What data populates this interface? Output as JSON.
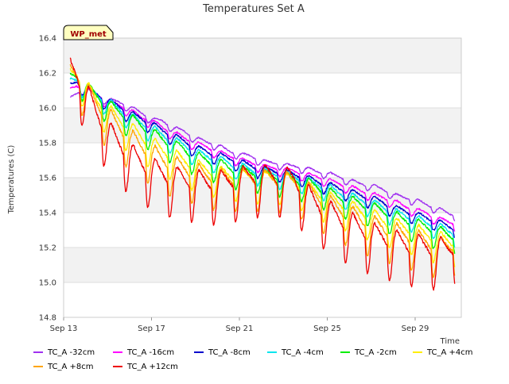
{
  "chart_data": {
    "type": "line",
    "title": "Temperatures Set A",
    "xlabel": "Time",
    "ylabel": "Temperatures (C)",
    "site_label": "WP_met",
    "x_ticks": [
      "Sep 13",
      "Sep 17",
      "Sep 21",
      "Sep 25",
      "Sep 29"
    ],
    "x_tick_days": [
      13,
      17,
      21,
      25,
      29
    ],
    "xlim_days": [
      13,
      31.1
    ],
    "ylim": [
      14.8,
      16.4
    ],
    "y_ticks": [
      14.8,
      15.0,
      15.2,
      15.4,
      15.6,
      15.8,
      16.0,
      16.2,
      16.4
    ],
    "grid": true,
    "legend_position": "bottom",
    "x": [
      13.3,
      13.6,
      14.0,
      14.5,
      15.0,
      15.5,
      16.0,
      16.5,
      17.0,
      17.5,
      18.0,
      18.5,
      19.0,
      19.5,
      20.0,
      20.5,
      21.0,
      21.5,
      22.0,
      22.5,
      23.0,
      23.5,
      24.0,
      24.5,
      25.0,
      25.5,
      26.0,
      26.5,
      27.0,
      27.5,
      28.0,
      28.5,
      29.0,
      29.5,
      30.0,
      30.5,
      30.8
    ],
    "series": [
      {
        "name": "TC_A -32cm",
        "color": "#a030f0",
        "values": [
          16.05,
          16.08,
          16.1,
          16.07,
          16.04,
          16.03,
          16.0,
          15.97,
          15.93,
          15.92,
          15.88,
          15.86,
          15.82,
          15.8,
          15.78,
          15.75,
          15.73,
          15.72,
          15.69,
          15.68,
          15.67,
          15.66,
          15.65,
          15.63,
          15.62,
          15.6,
          15.58,
          15.56,
          15.55,
          15.53,
          15.5,
          15.48,
          15.47,
          15.44,
          15.42,
          15.39,
          15.38
        ]
      },
      {
        "name": "TC_A -16cm",
        "color": "#ff00ff",
        "values": [
          16.1,
          16.12,
          16.1,
          16.07,
          16.03,
          16.01,
          15.98,
          15.94,
          15.92,
          15.88,
          15.85,
          15.82,
          15.79,
          15.77,
          15.74,
          15.72,
          15.7,
          15.68,
          15.66,
          15.65,
          15.64,
          15.63,
          15.61,
          15.6,
          15.58,
          15.56,
          15.54,
          15.52,
          15.5,
          15.48,
          15.46,
          15.43,
          15.41,
          15.39,
          15.36,
          15.34,
          15.33
        ]
      },
      {
        "name": "TC_A -8cm",
        "color": "#0000cc",
        "values": [
          16.12,
          16.14,
          16.11,
          16.07,
          16.03,
          16.0,
          15.96,
          15.93,
          15.9,
          15.86,
          15.83,
          15.8,
          15.76,
          15.74,
          15.72,
          15.7,
          15.68,
          15.66,
          15.64,
          15.63,
          15.62,
          15.61,
          15.59,
          15.57,
          15.55,
          15.53,
          15.51,
          15.49,
          15.47,
          15.45,
          15.42,
          15.4,
          15.38,
          15.36,
          15.34,
          15.31,
          15.3
        ]
      },
      {
        "name": "TC_A -4cm",
        "color": "#00e5ee",
        "values": [
          16.14,
          16.15,
          16.11,
          16.06,
          16.02,
          15.98,
          15.94,
          15.9,
          15.87,
          15.83,
          15.8,
          15.77,
          15.73,
          15.71,
          15.69,
          15.67,
          15.65,
          15.63,
          15.62,
          15.61,
          15.6,
          15.59,
          15.57,
          15.55,
          15.53,
          15.5,
          15.48,
          15.46,
          15.44,
          15.42,
          15.39,
          15.37,
          15.35,
          15.33,
          15.31,
          15.28,
          15.27
        ]
      },
      {
        "name": "TC_A -2cm",
        "color": "#00ee00",
        "values": [
          16.16,
          16.16,
          16.11,
          16.05,
          16.0,
          15.96,
          15.92,
          15.88,
          15.84,
          15.8,
          15.77,
          15.74,
          15.7,
          15.68,
          15.66,
          15.64,
          15.62,
          15.61,
          15.6,
          15.59,
          15.58,
          15.57,
          15.55,
          15.53,
          15.5,
          15.47,
          15.45,
          15.43,
          15.41,
          15.39,
          15.36,
          15.34,
          15.32,
          15.3,
          15.28,
          15.25,
          15.25
        ]
      },
      {
        "name": "TC_A +4cm",
        "color": "#ffee00",
        "values": [
          16.17,
          16.17,
          16.1,
          16.02,
          15.96,
          15.91,
          15.86,
          15.81,
          15.77,
          15.73,
          15.7,
          15.67,
          15.64,
          15.62,
          15.6,
          15.59,
          15.58,
          15.58,
          15.57,
          15.57,
          15.56,
          15.55,
          15.52,
          15.49,
          15.46,
          15.43,
          15.41,
          15.38,
          15.36,
          15.33,
          15.31,
          15.29,
          15.27,
          15.25,
          15.23,
          15.21,
          15.2
        ]
      },
      {
        "name": "TC_A +8cm",
        "color": "#ffa500",
        "values": [
          16.18,
          16.16,
          16.08,
          15.99,
          15.92,
          15.86,
          15.8,
          15.75,
          15.71,
          15.67,
          15.64,
          15.62,
          15.6,
          15.58,
          15.57,
          15.56,
          15.56,
          15.57,
          15.56,
          15.56,
          15.55,
          15.54,
          15.5,
          15.46,
          15.42,
          15.39,
          15.36,
          15.33,
          15.3,
          15.28,
          15.26,
          15.24,
          15.22,
          15.2,
          15.18,
          15.17,
          15.18
        ]
      },
      {
        "name": "TC_A +12cm",
        "color": "#ee0000",
        "values": [
          16.2,
          16.15,
          16.05,
          15.93,
          15.83,
          15.76,
          15.7,
          15.65,
          15.61,
          15.58,
          15.56,
          15.55,
          15.54,
          15.53,
          15.53,
          15.54,
          15.55,
          15.57,
          15.57,
          15.57,
          15.56,
          15.55,
          15.47,
          15.41,
          15.37,
          15.33,
          15.3,
          15.27,
          15.24,
          15.22,
          15.2,
          15.18,
          15.17,
          15.16,
          15.15,
          15.15,
          15.17
        ]
      }
    ]
  }
}
